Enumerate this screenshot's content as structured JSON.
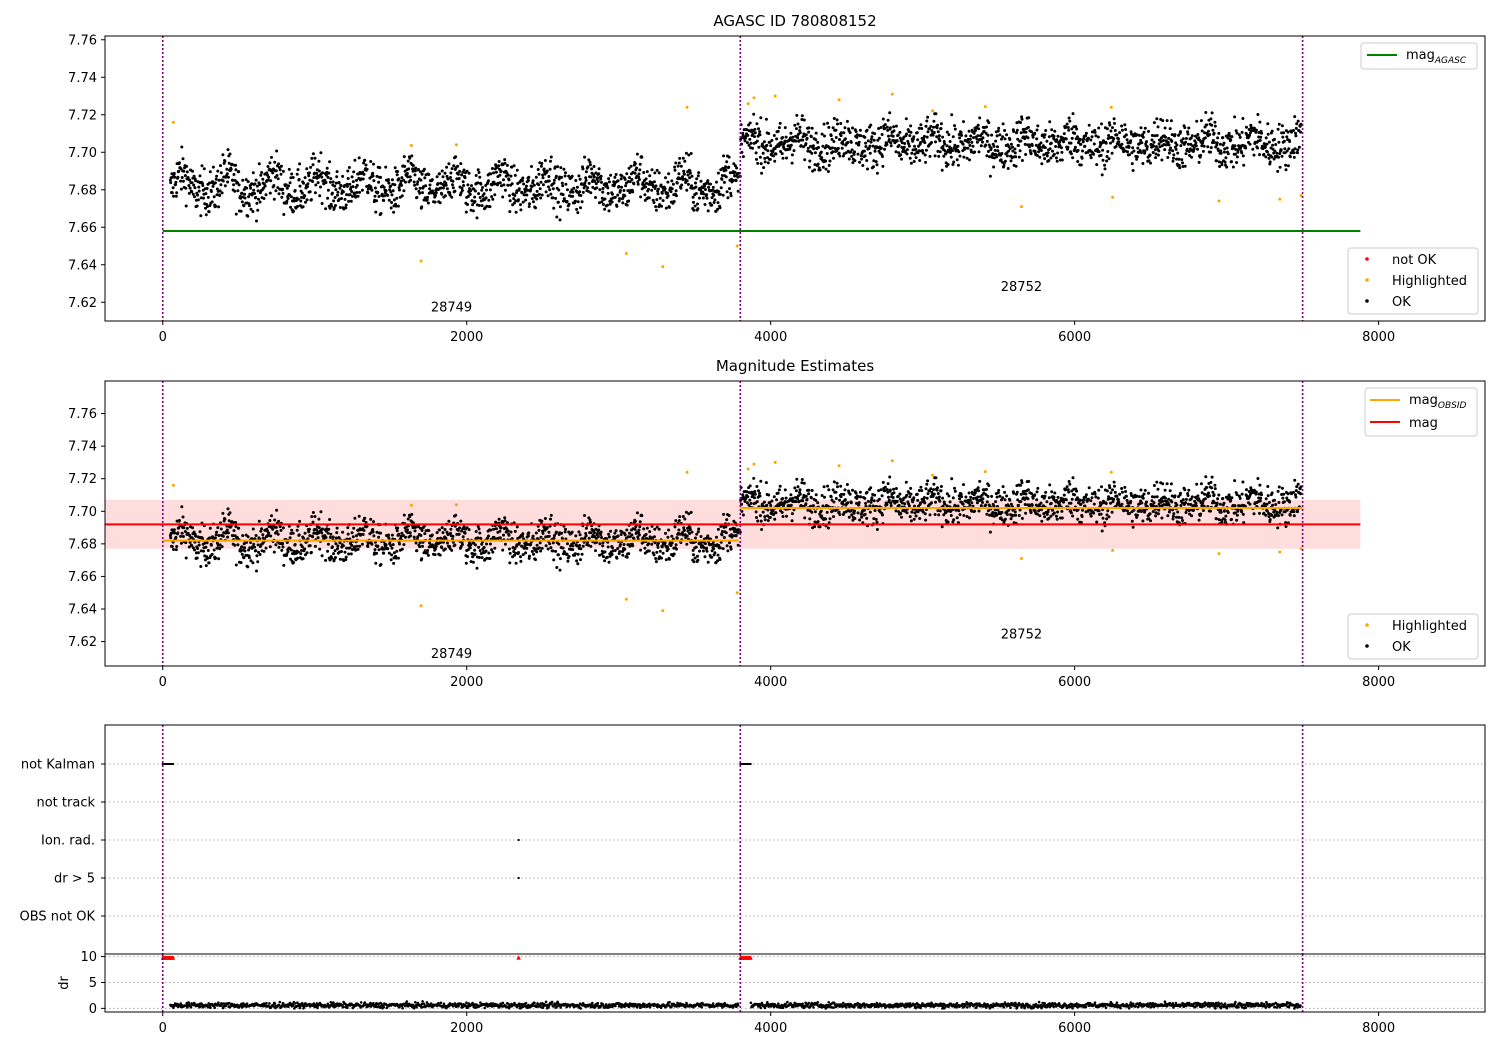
{
  "chart_data": [
    {
      "type": "scatter",
      "title": "AGASC ID 780808152",
      "xlim": [
        -380,
        8700
      ],
      "ylim": [
        7.61,
        7.762
      ],
      "x_ticks": [
        0,
        2000,
        4000,
        6000,
        8000
      ],
      "y_ticks": [
        7.62,
        7.64,
        7.66,
        7.68,
        7.7,
        7.72,
        7.74,
        7.76
      ],
      "legend_lines": [
        {
          "label": "mag",
          "subscript": "AGASC",
          "color": "#008000"
        }
      ],
      "legend_points": [
        {
          "label": "not OK",
          "color": "#ff0000"
        },
        {
          "label": "Highlighted",
          "color": "#ffa500"
        },
        {
          "label": "OK",
          "color": "#000000"
        }
      ],
      "hlines": [
        {
          "y": 7.658,
          "x0": 0,
          "x1": 7880,
          "color": "#008000",
          "name": "mag_AGASC"
        }
      ],
      "vlines": [
        0,
        3800,
        7500
      ],
      "obsid_labels": [
        {
          "text": "28749",
          "x": 1900,
          "y": 7.615
        },
        {
          "text": "28752",
          "x": 5650,
          "y": 7.626
        }
      ],
      "series": [
        {
          "name": "OK",
          "color": "#000000"
        },
        {
          "name": "Highlighted",
          "color": "#ffa500"
        }
      ],
      "segments": [
        {
          "obsid": "28749",
          "x_range": [
            50,
            3790
          ],
          "mean": 7.679,
          "spread": 0.006
        },
        {
          "obsid": "28752",
          "x_range": [
            3800,
            7490
          ],
          "mean": 7.703,
          "spread": 0.006
        }
      ]
    },
    {
      "type": "scatter",
      "title": "Magnitude Estimates",
      "xlim": [
        -380,
        8700
      ],
      "ylim": [
        7.605,
        7.78
      ],
      "x_ticks": [
        0,
        2000,
        4000,
        6000,
        8000
      ],
      "y_ticks": [
        7.62,
        7.64,
        7.66,
        7.68,
        7.7,
        7.72,
        7.74,
        7.76
      ],
      "legend_lines": [
        {
          "label": "mag",
          "subscript": "OBSID",
          "color": "#ffa500"
        },
        {
          "label": "mag",
          "subscript": "",
          "color": "#ff0000"
        }
      ],
      "legend_points": [
        {
          "label": "Highlighted",
          "color": "#ffa500"
        },
        {
          "label": "OK",
          "color": "#000000"
        }
      ],
      "band": {
        "y0": 7.677,
        "y1": 7.707,
        "x0": -380,
        "x1": 7880,
        "color": "#ffdddd"
      },
      "hlines": [
        {
          "y": 7.692,
          "x0": -380,
          "x1": 7880,
          "color": "#ff0000",
          "name": "mag"
        },
        {
          "y": 7.682,
          "x0": 0,
          "x1": 3790,
          "color": "#ffa500",
          "name": "mag_OBSID"
        },
        {
          "y": 7.702,
          "x0": 3800,
          "x1": 7500,
          "color": "#ffa500",
          "name": "mag_OBSID"
        }
      ],
      "vlines": [
        0,
        3800,
        7500
      ],
      "obsid_labels": [
        {
          "text": "28749",
          "x": 1900,
          "y": 7.61
        },
        {
          "text": "28752",
          "x": 5650,
          "y": 7.622
        }
      ]
    },
    {
      "type": "scatter",
      "xlim": [
        -380,
        8700
      ],
      "x_ticks": [
        0,
        2000,
        4000,
        6000,
        8000
      ],
      "flag_rows": [
        "not Kalman",
        "not track",
        "Ion. rad.",
        "dr > 5",
        "OBS not OK"
      ],
      "flag_points": [
        {
          "row": "not Kalman",
          "x_range": [
            0,
            70
          ]
        },
        {
          "row": "not Kalman",
          "x_range": [
            3800,
            3870
          ]
        },
        {
          "row": "Ion. rad.",
          "x_range": [
            2340,
            2345
          ]
        },
        {
          "row": "dr > 5",
          "x_range": [
            2340,
            2345
          ]
        }
      ],
      "dr_panel": {
        "ylabel": "dr",
        "ylim": [
          -0.7,
          10.5
        ],
        "y_ticks": [
          0,
          5,
          10
        ],
        "clipped_points": [
          {
            "x_range": [
              0,
              70
            ]
          },
          {
            "x_range": [
              2340,
              2345
            ]
          },
          {
            "x_range": [
              3800,
              3870
            ]
          }
        ],
        "baseline_mean": 0.6
      },
      "vlines": [
        0,
        3800,
        7500
      ]
    }
  ]
}
